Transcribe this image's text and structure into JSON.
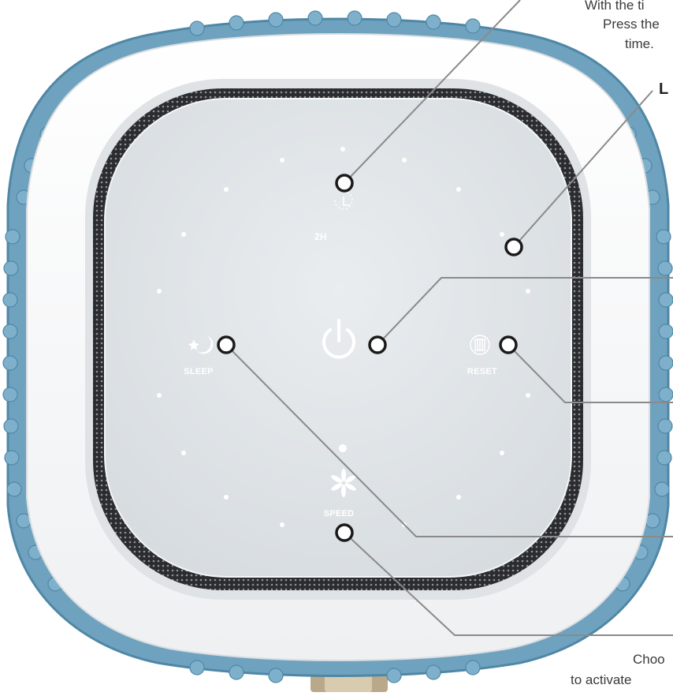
{
  "callouts": {
    "timer_line1": "With the ti",
    "timer_line2": "Press the",
    "timer_line3": "time.",
    "light_heading": "L",
    "speed_line1": "Choo",
    "speed_line2": "to activate"
  },
  "panel": {
    "timer_label": "2H",
    "sleep_label": "SLEEP",
    "reset_label": "RESET",
    "speed_label": "SPEED"
  },
  "icons": {
    "timer": "timer-icon",
    "power": "power-icon",
    "sleep": "moon-star-icon",
    "reset": "filter-icon",
    "speed": "fan-icon"
  },
  "colors": {
    "body_blue": "#6fa2bf",
    "shell_white": "#f7f8f9",
    "panel_glass": "#e3e7ea",
    "grille": "#2f3033",
    "callout_line": "#8a8a8a"
  }
}
